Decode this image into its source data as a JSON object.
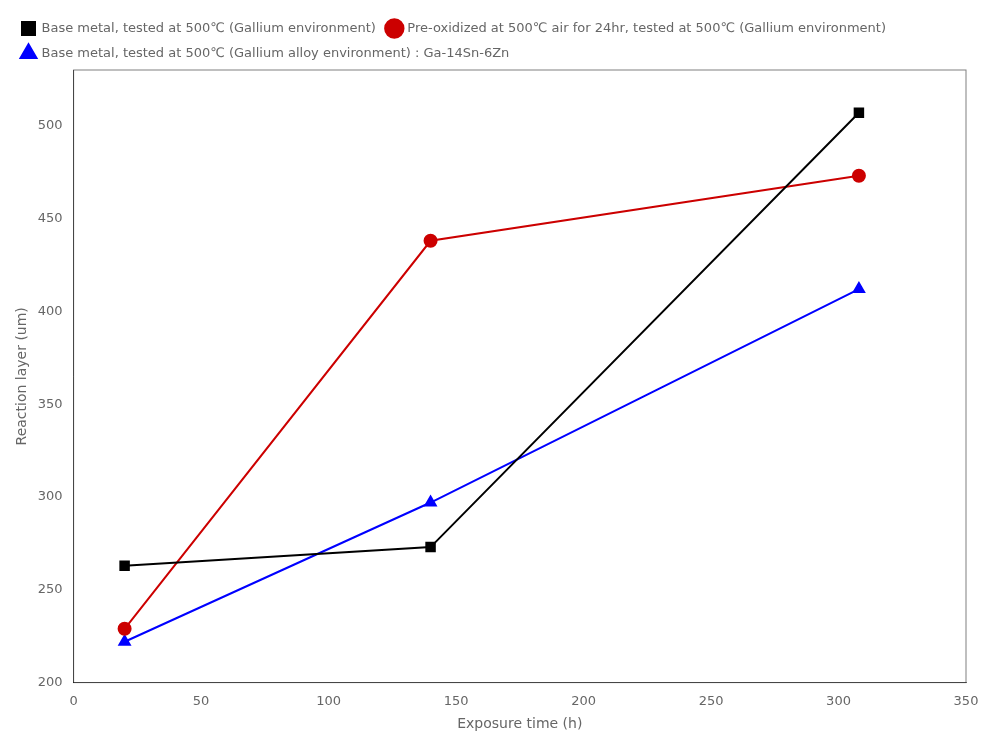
{
  "chart_data": {
    "type": "line",
    "x": [
      20,
      140,
      308
    ],
    "series": [
      {
        "name": "Base metal, tested at 500℃ (Gallium environment)",
        "values": [
          263,
          273,
          507
        ],
        "color": "black",
        "marker": "square",
        "line_style": "solid"
      },
      {
        "name": "Pre-oxidized at 500℃ air for 24hr, tested at 500℃ (Gallium environment)",
        "values": [
          229,
          438,
          473
        ],
        "color": "#cc0000",
        "marker": "circle",
        "line_style": "solid"
      },
      {
        "name": "Base metal, tested at 500℃ (Gallium alloy environment) : Ga-14Sn-6Zn",
        "values": [
          222,
          297,
          412
        ],
        "color": "blue",
        "marker": "triangle",
        "line_style": "solid"
      }
    ],
    "x_label": "Exposure time (h)",
    "y_label": "Reaction layer (um)",
    "xlim": [
      0,
      350
    ],
    "ylim": [
      200,
      530
    ],
    "xticks": [
      0,
      50,
      100,
      150,
      200,
      250,
      300,
      350
    ],
    "yticks": [
      200,
      250,
      300,
      350,
      400,
      450,
      500
    ],
    "grid": false,
    "legend": "upper left"
  }
}
